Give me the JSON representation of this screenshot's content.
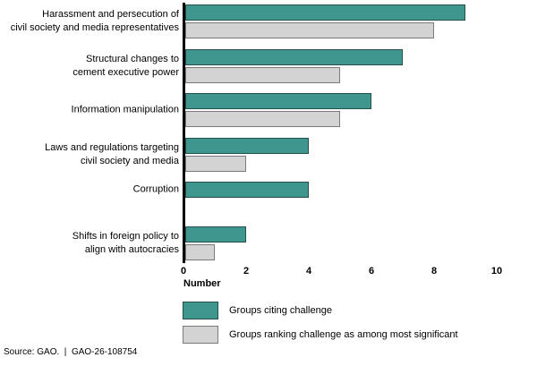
{
  "chart_data": {
    "type": "bar",
    "orientation": "horizontal",
    "title": "",
    "xlabel": "Number",
    "ylabel": "",
    "xlim": [
      0,
      10
    ],
    "xticks": [
      0,
      2,
      4,
      6,
      8,
      10
    ],
    "grid": false,
    "legend_position": "bottom-left",
    "categories": [
      "Harassment and persecution of\ncivil society and media representatives",
      "Structural changes to\ncement executive power",
      "Information manipulation",
      "Laws and regulations targeting\ncivil society and media",
      "Corruption",
      "Shifts in foreign policy to\nalign with autocracies"
    ],
    "series": [
      {
        "name": "Groups citing challenge",
        "color": "#3f968f",
        "border_color": "#24504c",
        "values": [
          9,
          7,
          6,
          4,
          4,
          2
        ]
      },
      {
        "name": "Groups ranking challenge as among most significant",
        "color": "#d3d3d3",
        "border_color": "#7a7a7a",
        "values": [
          8,
          5,
          5,
          2,
          0,
          1
        ]
      }
    ]
  },
  "source_note": "Source: GAO.  |  GAO-26-108754"
}
